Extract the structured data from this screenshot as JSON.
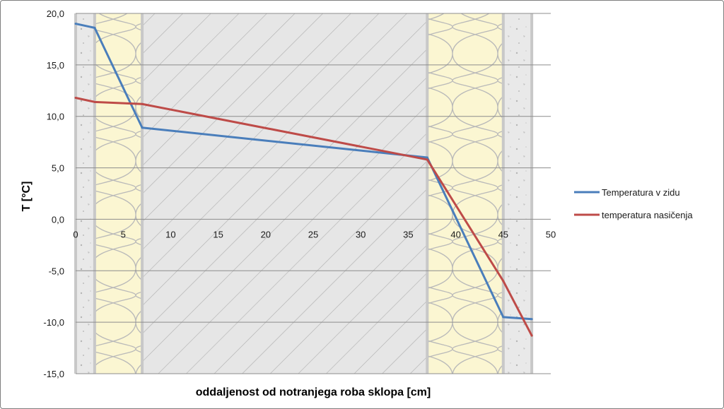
{
  "chart_data": {
    "type": "line",
    "title": "",
    "xlabel": "oddaljenost od notranjega roba sklopa [cm]",
    "ylabel": "T [°C]",
    "xlim": [
      0,
      50
    ],
    "ylim": [
      -15,
      20
    ],
    "x_ticks": [
      0,
      5,
      10,
      15,
      20,
      25,
      30,
      35,
      40,
      45,
      50
    ],
    "x_tick_labels": [
      "0",
      "5",
      "10",
      "15",
      "20",
      "25",
      "30",
      "35",
      "40",
      "45",
      "50"
    ],
    "y_ticks": [
      20,
      15,
      10,
      5,
      0,
      -5,
      -10,
      -15
    ],
    "y_tick_labels": [
      "20,0",
      "15,0",
      "10,0",
      "5,0",
      "0,0",
      "-5,0",
      "-10,0",
      "-15,0"
    ],
    "grid": "horizontal",
    "legend_position": "right",
    "series": [
      {
        "name": "Temperatura v zidu",
        "color": "#4a7ebb",
        "x": [
          0,
          2,
          7,
          37,
          45,
          48
        ],
        "y": [
          19.0,
          18.6,
          8.9,
          6.0,
          -9.5,
          -9.7
        ]
      },
      {
        "name": "temperatura nasičenja",
        "color": "#be4b48",
        "x": [
          0,
          2,
          7,
          37,
          45,
          48
        ],
        "y": [
          11.8,
          11.4,
          11.2,
          5.8,
          -6.0,
          -11.3
        ]
      }
    ],
    "background_layers": [
      {
        "material": "plaster",
        "from": 0,
        "to": 2,
        "pattern": "speckled"
      },
      {
        "material": "insulation",
        "from": 2,
        "to": 7,
        "pattern": "batting"
      },
      {
        "material": "concrete",
        "from": 7,
        "to": 37,
        "pattern": "hatched"
      },
      {
        "material": "insulation",
        "from": 37,
        "to": 45,
        "pattern": "batting"
      },
      {
        "material": "plaster",
        "from": 45,
        "to": 48,
        "pattern": "speckled"
      }
    ]
  }
}
